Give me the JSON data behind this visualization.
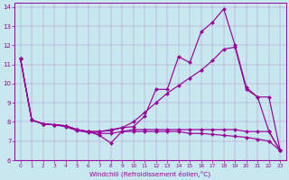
{
  "xlabel": "Windchill (Refroidissement éolien,°C)",
  "bg_color": "#c8e8f0",
  "line_color": "#990099",
  "xlim": [
    -0.5,
    23.5
  ],
  "ylim": [
    6,
    14.2
  ],
  "xticks": [
    0,
    1,
    2,
    3,
    4,
    5,
    6,
    7,
    8,
    9,
    10,
    11,
    12,
    13,
    14,
    15,
    16,
    17,
    18,
    19,
    20,
    21,
    22,
    23
  ],
  "yticks": [
    6,
    7,
    8,
    9,
    10,
    11,
    12,
    13,
    14
  ],
  "curves": [
    {
      "x": [
        0,
        1,
        2,
        3,
        4,
        5,
        6,
        7,
        8,
        9,
        10,
        11,
        12,
        13,
        14,
        15,
        16,
        17,
        18,
        19,
        20,
        21,
        22,
        23
      ],
      "y": [
        11.3,
        8.1,
        7.9,
        7.85,
        7.75,
        7.55,
        7.45,
        7.4,
        7.4,
        7.5,
        7.5,
        7.5,
        7.5,
        7.5,
        7.5,
        7.4,
        7.4,
        7.35,
        7.3,
        7.25,
        7.2,
        7.1,
        7.0,
        6.5
      ]
    },
    {
      "x": [
        0,
        1,
        2,
        3,
        4,
        5,
        6,
        7,
        8,
        9,
        10,
        11,
        12,
        13,
        14,
        15,
        16,
        17,
        18,
        19,
        20,
        21,
        22,
        23
      ],
      "y": [
        11.3,
        8.1,
        7.9,
        7.85,
        7.8,
        7.6,
        7.5,
        7.5,
        7.55,
        7.7,
        8.0,
        8.5,
        9.0,
        9.5,
        9.9,
        10.3,
        10.7,
        11.2,
        11.8,
        11.9,
        9.7,
        9.3,
        9.3,
        6.5
      ]
    },
    {
      "x": [
        0,
        1,
        2,
        3,
        4,
        5,
        6,
        7,
        8,
        9,
        10,
        11,
        12,
        13,
        14,
        15,
        16,
        17,
        18,
        19,
        20,
        21,
        22,
        23
      ],
      "y": [
        11.3,
        8.1,
        7.9,
        7.85,
        7.8,
        7.6,
        7.5,
        7.5,
        7.6,
        7.7,
        7.75,
        8.3,
        9.7,
        9.7,
        11.4,
        11.1,
        12.7,
        13.2,
        13.9,
        12.0,
        9.8,
        9.3,
        7.5,
        6.5
      ]
    },
    {
      "x": [
        0,
        1,
        2,
        3,
        4,
        5,
        6,
        7,
        8,
        9,
        10,
        11,
        12,
        13,
        14,
        15,
        16,
        17,
        18,
        19,
        20,
        21,
        22,
        23
      ],
      "y": [
        11.3,
        8.1,
        7.9,
        7.85,
        7.8,
        7.6,
        7.5,
        7.3,
        6.9,
        7.5,
        7.6,
        7.6,
        7.6,
        7.6,
        7.6,
        7.6,
        7.6,
        7.6,
        7.6,
        7.6,
        7.5,
        7.5,
        7.5,
        6.5
      ]
    }
  ],
  "markersize": 2.2,
  "linewidth": 0.85,
  "marker": "D"
}
